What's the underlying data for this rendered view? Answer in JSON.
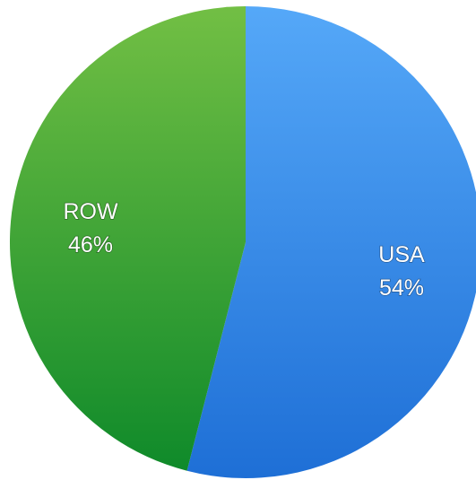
{
  "chart_data": {
    "type": "pie",
    "title": "",
    "slices": [
      {
        "label": "USA",
        "value": 54,
        "value_label": "54%",
        "color_light": "#55a8f8",
        "color_dark": "#1e6fd6"
      },
      {
        "label": "ROW",
        "value": 46,
        "value_label": "46%",
        "color_light": "#72bf44",
        "color_dark": "#0f8a2a"
      }
    ],
    "start_angle_deg": 0,
    "direction": "clockwise",
    "legend": "none",
    "data_labels": "inside"
  }
}
